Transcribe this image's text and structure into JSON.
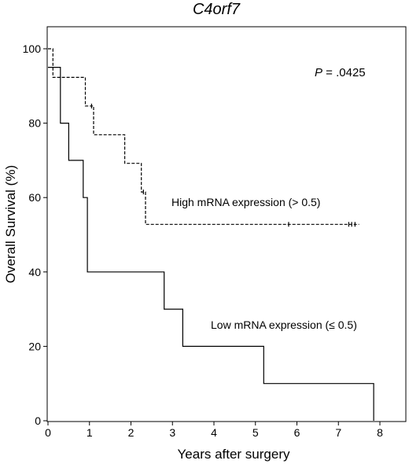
{
  "chart_data": {
    "type": "line",
    "step": true,
    "title": "C4orf7",
    "xlabel": "Years after surgery",
    "ylabel": "Overall Survival (%)",
    "xlim": [
      0,
      8.6
    ],
    "ylim": [
      0,
      105
    ],
    "xticks": [
      0,
      1,
      2,
      3,
      4,
      5,
      6,
      7,
      8
    ],
    "yticks": [
      0,
      20,
      40,
      60,
      80,
      100
    ],
    "grid": false,
    "p_value": {
      "label": "P",
      "value": " = .0425"
    },
    "series": [
      {
        "name": "High mRNA expression (> 0.5)",
        "line_style": "dashed",
        "points": [
          [
            0,
            100
          ],
          [
            0.12,
            100
          ],
          [
            0.12,
            92.3
          ],
          [
            0.9,
            92.3
          ],
          [
            0.9,
            84.6
          ],
          [
            1.1,
            84.6
          ],
          [
            1.1,
            76.9
          ],
          [
            1.85,
            76.9
          ],
          [
            1.85,
            69.2
          ],
          [
            2.25,
            69.2
          ],
          [
            2.25,
            61.5
          ],
          [
            2.35,
            61.5
          ],
          [
            2.35,
            52.8
          ],
          [
            7.5,
            52.8
          ]
        ],
        "censored": [
          [
            1.05,
            84.6
          ],
          [
            2.3,
            61.5
          ],
          [
            5.8,
            52.8
          ],
          [
            7.25,
            52.8
          ],
          [
            7.32,
            52.8
          ],
          [
            7.4,
            52.8
          ]
        ]
      },
      {
        "name": "Low mRNA expression (≤ 0.5)",
        "line_style": "solid",
        "points": [
          [
            0,
            95
          ],
          [
            0.3,
            95
          ],
          [
            0.3,
            80
          ],
          [
            0.5,
            80
          ],
          [
            0.5,
            70
          ],
          [
            0.85,
            70
          ],
          [
            0.85,
            60
          ],
          [
            0.95,
            60
          ],
          [
            0.95,
            40
          ],
          [
            2.8,
            40
          ],
          [
            2.8,
            30
          ],
          [
            3.25,
            30
          ],
          [
            3.25,
            20
          ],
          [
            5.2,
            20
          ],
          [
            5.2,
            10
          ],
          [
            7.85,
            10
          ],
          [
            7.85,
            0
          ]
        ],
        "censored": []
      }
    ]
  }
}
